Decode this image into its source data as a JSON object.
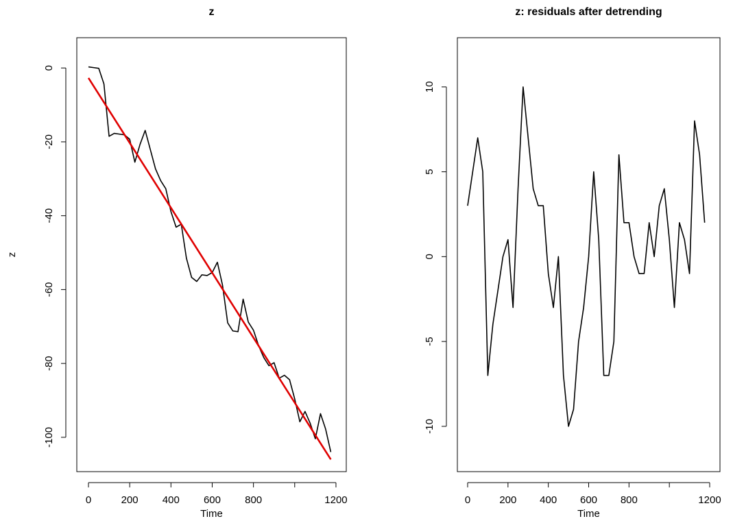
{
  "chart_data": [
    {
      "type": "line",
      "title": "z",
      "xlabel": "Time",
      "ylabel": "z",
      "x": [
        0,
        25,
        50,
        75,
        100,
        125,
        150,
        175,
        200,
        225,
        250,
        275,
        300,
        325,
        350,
        375,
        400,
        425,
        450,
        475,
        500,
        525,
        550,
        575,
        600,
        625,
        650,
        675,
        700,
        725,
        750,
        775,
        800,
        825,
        850,
        875,
        900,
        925,
        950,
        975,
        1000,
        1025,
        1050,
        1075,
        1100,
        1125,
        1150,
        1175
      ],
      "xlim": [
        -56.5,
        1250
      ],
      "ylim": [
        -109.3,
        8.2
      ],
      "xticks": [
        0,
        200,
        400,
        600,
        800,
        {
          "value": 1000,
          "label": null
        },
        1200
      ],
      "yticks": [
        -100,
        -80,
        -60,
        -40,
        -20,
        0
      ],
      "series": [
        {
          "color": "#000000",
          "values": [
            0.3,
            0.1,
            -0.1,
            -4.3,
            -18.5,
            -17.7,
            -17.9,
            -18.1,
            -19.3,
            -25.5,
            -20.7,
            -16.9,
            -22.1,
            -27.3,
            -30.5,
            -32.7,
            -38.9,
            -43.1,
            -42.3,
            -51.5,
            -56.7,
            -57.8,
            -56.0,
            -56.2,
            -55.4,
            -52.6,
            -58.8,
            -69.0,
            -71.2,
            -71.4,
            -62.6,
            -68.8,
            -71.0,
            -75.2,
            -78.4,
            -80.6,
            -79.8,
            -84.0,
            -83.2,
            -84.4,
            -89.6,
            -95.8,
            -93.0,
            -96.2,
            -100.4,
            -93.6,
            -97.8,
            -104.0
          ]
        },
        {
          "color": "#e00000",
          "x": [
            0,
            1175
          ],
          "values": [
            -2.7,
            -106.0
          ]
        }
      ]
    },
    {
      "type": "line",
      "title": "z: residuals after detrending",
      "xlabel": "Time",
      "x": [
        0,
        25,
        50,
        75,
        100,
        125,
        150,
        175,
        200,
        225,
        250,
        275,
        300,
        325,
        350,
        375,
        400,
        425,
        450,
        475,
        500,
        525,
        550,
        575,
        600,
        625,
        650,
        675,
        700,
        725,
        750,
        775,
        800,
        825,
        850,
        875,
        900,
        925,
        950,
        975,
        1000,
        1025,
        1050,
        1075,
        1100,
        1125,
        1150,
        1175
      ],
      "xlim": [
        -51,
        1251
      ],
      "ylim": [
        -12.67,
        12.9
      ],
      "xticks": [
        0,
        200,
        400,
        600,
        800,
        {
          "value": 1000,
          "label": null
        },
        1200
      ],
      "yticks": [
        -10,
        -5,
        0,
        5,
        10
      ],
      "series": [
        {
          "color": "#000000",
          "values": [
            3,
            5,
            7,
            5,
            -7,
            -4,
            -2,
            0,
            1,
            -3,
            4,
            10,
            7,
            4,
            3,
            3,
            -1,
            -3,
            0,
            -7,
            -10,
            -9,
            -5,
            -3,
            0,
            5,
            1,
            -7,
            -7,
            -5,
            6,
            2,
            2,
            0,
            -1,
            -1,
            2,
            0,
            3,
            4,
            1,
            -3,
            2,
            1,
            -1,
            8,
            6,
            2
          ]
        }
      ]
    }
  ]
}
